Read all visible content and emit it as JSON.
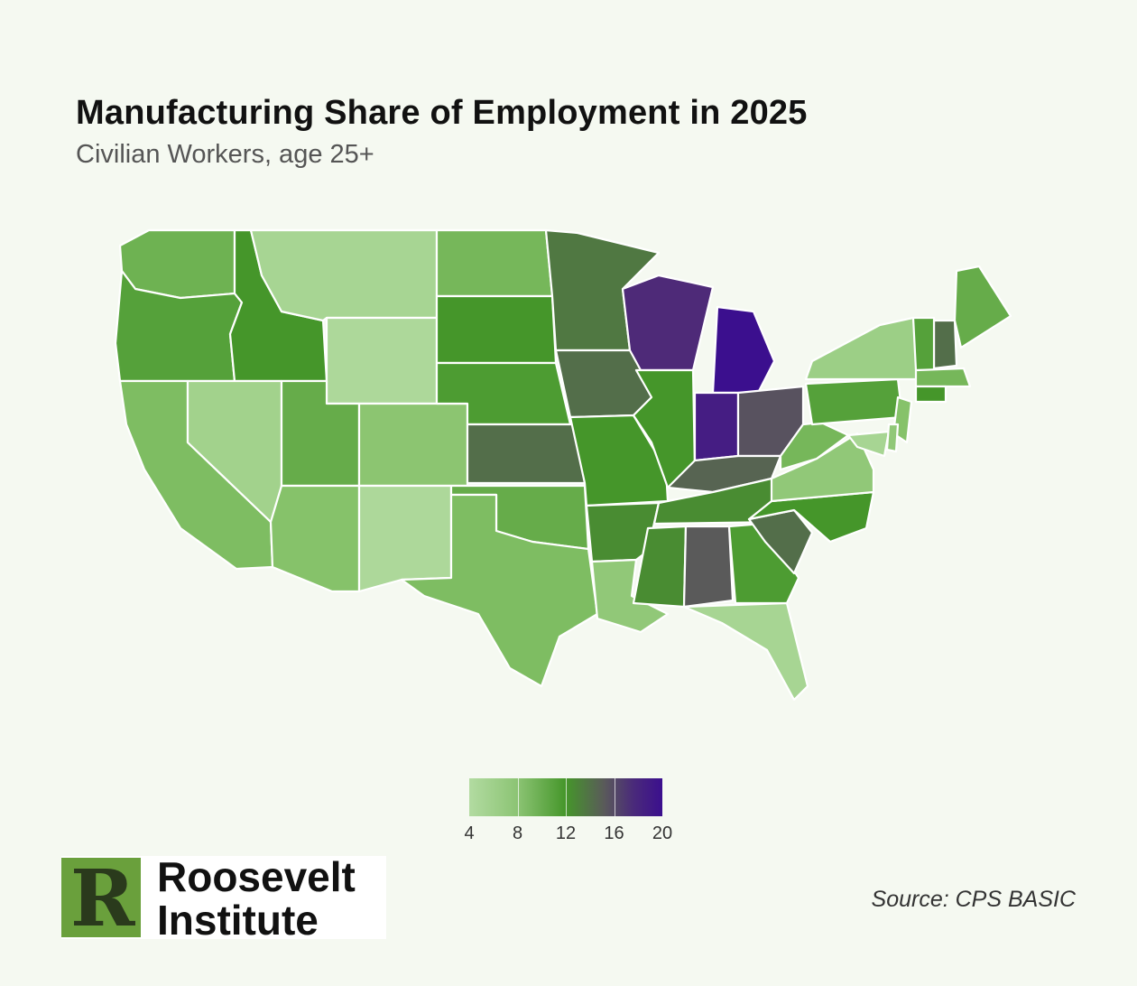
{
  "header": {
    "title": "Manufacturing Share of Employment in 2025",
    "subtitle": "Civilian Workers, age 25+"
  },
  "legend": {
    "ticks": [
      "4",
      "8",
      "12",
      "16",
      "20"
    ],
    "min": 4,
    "max": 20,
    "colors": [
      "#b2dba1",
      "#8cc474",
      "#45962a",
      "#5a5a5a",
      "#4a2a7a",
      "#3b0f8e"
    ]
  },
  "logo": {
    "line1": "Roosevelt",
    "line2": "Institute",
    "mark": "R"
  },
  "source": "Source: CPS BASIC",
  "map_data": {
    "type": "choropleth",
    "states": [
      {
        "id": "WA",
        "value": 9.5
      },
      {
        "id": "OR",
        "value": 11
      },
      {
        "id": "CA",
        "value": 8.5
      },
      {
        "id": "ID",
        "value": 12
      },
      {
        "id": "NV",
        "value": 5.5
      },
      {
        "id": "MT",
        "value": 5
      },
      {
        "id": "WY",
        "value": 4.5
      },
      {
        "id": "UT",
        "value": 10
      },
      {
        "id": "AZ",
        "value": 8
      },
      {
        "id": "CO",
        "value": 7.5
      },
      {
        "id": "NM",
        "value": 4.5
      },
      {
        "id": "ND",
        "value": 9
      },
      {
        "id": "SD",
        "value": 12
      },
      {
        "id": "NE",
        "value": 11.5
      },
      {
        "id": "KS",
        "value": 14
      },
      {
        "id": "OK",
        "value": 10
      },
      {
        "id": "TX",
        "value": 8.5
      },
      {
        "id": "MN",
        "value": 13.5
      },
      {
        "id": "IA",
        "value": 14
      },
      {
        "id": "MO",
        "value": 12
      },
      {
        "id": "AR",
        "value": 12.5
      },
      {
        "id": "LA",
        "value": 7
      },
      {
        "id": "WI",
        "value": 18
      },
      {
        "id": "IL",
        "value": 12
      },
      {
        "id": "MI",
        "value": 20
      },
      {
        "id": "IN",
        "value": 19
      },
      {
        "id": "OH",
        "value": 15.5
      },
      {
        "id": "KY",
        "value": 14.5
      },
      {
        "id": "TN",
        "value": 12.5
      },
      {
        "id": "MS",
        "value": 12.5
      },
      {
        "id": "AL",
        "value": 15
      },
      {
        "id": "GA",
        "value": 11.5
      },
      {
        "id": "FL",
        "value": 5
      },
      {
        "id": "SC",
        "value": 14
      },
      {
        "id": "NC",
        "value": 12
      },
      {
        "id": "VA",
        "value": 7
      },
      {
        "id": "WV",
        "value": 9
      },
      {
        "id": "PA",
        "value": 11
      },
      {
        "id": "NY",
        "value": 6
      },
      {
        "id": "ME",
        "value": 10
      },
      {
        "id": "NH",
        "value": 14
      },
      {
        "id": "VT",
        "value": 11
      },
      {
        "id": "MA",
        "value": 9
      },
      {
        "id": "CT",
        "value": 12
      },
      {
        "id": "NJ",
        "value": 8
      },
      {
        "id": "MD",
        "value": 5
      },
      {
        "id": "DE",
        "value": 7
      }
    ]
  }
}
